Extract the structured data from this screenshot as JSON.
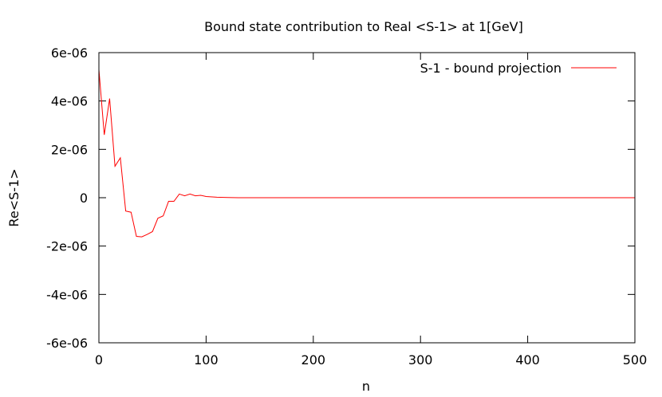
{
  "chart_data": {
    "type": "line",
    "title": "Bound state contribution to Real <S-1> at 1[GeV]",
    "xlabel": "n",
    "ylabel": "Re<S-1>",
    "xlim": [
      0,
      500
    ],
    "ylim": [
      -6e-06,
      6e-06
    ],
    "x_ticks": [
      0,
      100,
      200,
      300,
      400,
      500
    ],
    "x_tick_labels": [
      "0",
      "100",
      "200",
      "300",
      "400",
      "500"
    ],
    "y_ticks": [
      -6e-06,
      -4e-06,
      -2e-06,
      0,
      2e-06,
      4e-06,
      6e-06
    ],
    "y_tick_labels": [
      "-6e-06",
      "-4e-06",
      "-2e-06",
      "0",
      "2e-06",
      "4e-06",
      "6e-06"
    ],
    "grid": false,
    "legend_position": "top-right",
    "series": [
      {
        "name": "S-1 - bound projection",
        "color": "#ff0000",
        "x": [
          0,
          5,
          10,
          15,
          20,
          25,
          30,
          35,
          40,
          45,
          50,
          55,
          60,
          65,
          70,
          75,
          80,
          85,
          90,
          95,
          100,
          110,
          120,
          130,
          150,
          200,
          250,
          300,
          350,
          400,
          450,
          500
        ],
        "y": [
          5.3e-06,
          2.6e-06,
          4.1e-06,
          1.3e-06,
          1.65e-06,
          -5.5e-07,
          -6e-07,
          -1.6e-06,
          -1.62e-06,
          -1.52e-06,
          -1.4e-06,
          -8.5e-07,
          -7.5e-07,
          -1.5e-07,
          -1.5e-07,
          1.5e-07,
          8e-08,
          1.5e-07,
          8e-08,
          1e-07,
          5e-08,
          2e-08,
          1e-08,
          0,
          0,
          0,
          0,
          0,
          0,
          0,
          0,
          0
        ]
      }
    ]
  }
}
